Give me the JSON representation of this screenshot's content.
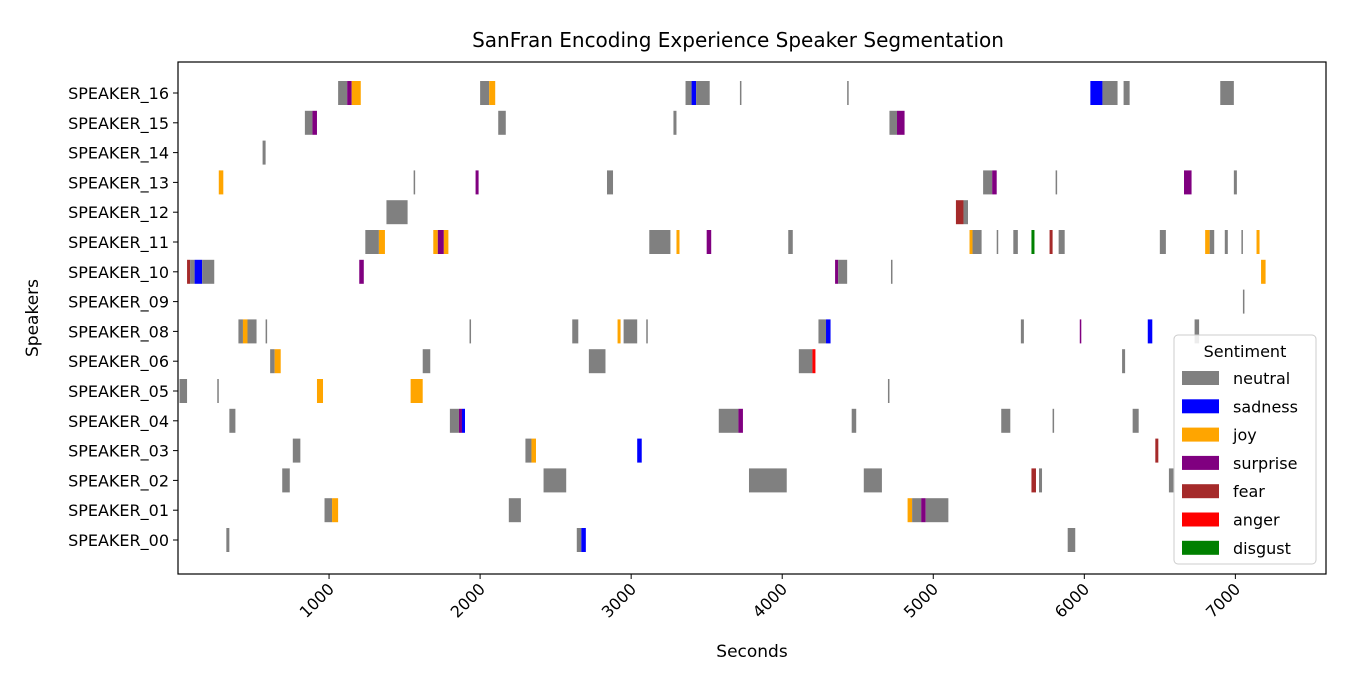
{
  "chart_data": {
    "type": "segmentation",
    "title": "SanFran Encoding Experience Speaker Segmentation",
    "xlabel": "Seconds",
    "ylabel": "Speakers",
    "xlim": [
      0,
      7600
    ],
    "xticks": [
      1000,
      2000,
      3000,
      4000,
      5000,
      6000,
      7000
    ],
    "speakers": [
      "SPEAKER_16",
      "SPEAKER_15",
      "SPEAKER_14",
      "SPEAKER_13",
      "SPEAKER_12",
      "SPEAKER_11",
      "SPEAKER_10",
      "SPEAKER_09",
      "SPEAKER_08",
      "SPEAKER_06",
      "SPEAKER_05",
      "SPEAKER_04",
      "SPEAKER_03",
      "SPEAKER_02",
      "SPEAKER_01",
      "SPEAKER_00"
    ],
    "legend": {
      "title": "Sentiment",
      "placement": "lower-right",
      "entries": [
        {
          "label": "neutral",
          "color": "#808080"
        },
        {
          "label": "sadness",
          "color": "#0000ff"
        },
        {
          "label": "joy",
          "color": "#ffa500"
        },
        {
          "label": "surprise",
          "color": "#800080"
        },
        {
          "label": "fear",
          "color": "#a52a2a"
        },
        {
          "label": "anger",
          "color": "#ff0000"
        },
        {
          "label": "disgust",
          "color": "#008000"
        }
      ]
    },
    "segments": [
      {
        "speaker": "SPEAKER_16",
        "start": 1060,
        "end": 1120,
        "sentiment": "neutral"
      },
      {
        "speaker": "SPEAKER_16",
        "start": 1120,
        "end": 1150,
        "sentiment": "surprise"
      },
      {
        "speaker": "SPEAKER_16",
        "start": 1150,
        "end": 1210,
        "sentiment": "joy"
      },
      {
        "speaker": "SPEAKER_16",
        "start": 2000,
        "end": 2060,
        "sentiment": "neutral"
      },
      {
        "speaker": "SPEAKER_16",
        "start": 2060,
        "end": 2100,
        "sentiment": "joy"
      },
      {
        "speaker": "SPEAKER_16",
        "start": 3360,
        "end": 3400,
        "sentiment": "neutral"
      },
      {
        "speaker": "SPEAKER_16",
        "start": 3400,
        "end": 3430,
        "sentiment": "sadness"
      },
      {
        "speaker": "SPEAKER_16",
        "start": 3430,
        "end": 3520,
        "sentiment": "neutral"
      },
      {
        "speaker": "SPEAKER_16",
        "start": 3720,
        "end": 3730,
        "sentiment": "neutral"
      },
      {
        "speaker": "SPEAKER_16",
        "start": 4430,
        "end": 4440,
        "sentiment": "neutral"
      },
      {
        "speaker": "SPEAKER_16",
        "start": 6040,
        "end": 6120,
        "sentiment": "sadness"
      },
      {
        "speaker": "SPEAKER_16",
        "start": 6120,
        "end": 6220,
        "sentiment": "neutral"
      },
      {
        "speaker": "SPEAKER_16",
        "start": 6260,
        "end": 6300,
        "sentiment": "neutral"
      },
      {
        "speaker": "SPEAKER_16",
        "start": 6900,
        "end": 6990,
        "sentiment": "neutral"
      },
      {
        "speaker": "SPEAKER_15",
        "start": 840,
        "end": 890,
        "sentiment": "neutral"
      },
      {
        "speaker": "SPEAKER_15",
        "start": 890,
        "end": 920,
        "sentiment": "surprise"
      },
      {
        "speaker": "SPEAKER_15",
        "start": 2120,
        "end": 2170,
        "sentiment": "neutral"
      },
      {
        "speaker": "SPEAKER_15",
        "start": 3280,
        "end": 3300,
        "sentiment": "neutral"
      },
      {
        "speaker": "SPEAKER_15",
        "start": 4710,
        "end": 4760,
        "sentiment": "neutral"
      },
      {
        "speaker": "SPEAKER_15",
        "start": 4760,
        "end": 4810,
        "sentiment": "surprise"
      },
      {
        "speaker": "SPEAKER_14",
        "start": 560,
        "end": 580,
        "sentiment": "neutral"
      },
      {
        "speaker": "SPEAKER_13",
        "start": 270,
        "end": 300,
        "sentiment": "joy"
      },
      {
        "speaker": "SPEAKER_13",
        "start": 1560,
        "end": 1570,
        "sentiment": "neutral"
      },
      {
        "speaker": "SPEAKER_13",
        "start": 1970,
        "end": 1990,
        "sentiment": "surprise"
      },
      {
        "speaker": "SPEAKER_13",
        "start": 2840,
        "end": 2880,
        "sentiment": "neutral"
      },
      {
        "speaker": "SPEAKER_13",
        "start": 5330,
        "end": 5390,
        "sentiment": "neutral"
      },
      {
        "speaker": "SPEAKER_13",
        "start": 5390,
        "end": 5420,
        "sentiment": "surprise"
      },
      {
        "speaker": "SPEAKER_13",
        "start": 5810,
        "end": 5820,
        "sentiment": "neutral"
      },
      {
        "speaker": "SPEAKER_13",
        "start": 6660,
        "end": 6710,
        "sentiment": "surprise"
      },
      {
        "speaker": "SPEAKER_13",
        "start": 6990,
        "end": 7010,
        "sentiment": "neutral"
      },
      {
        "speaker": "SPEAKER_12",
        "start": 1380,
        "end": 1520,
        "sentiment": "neutral"
      },
      {
        "speaker": "SPEAKER_12",
        "start": 5150,
        "end": 5200,
        "sentiment": "fear"
      },
      {
        "speaker": "SPEAKER_12",
        "start": 5200,
        "end": 5230,
        "sentiment": "neutral"
      },
      {
        "speaker": "SPEAKER_11",
        "start": 1240,
        "end": 1330,
        "sentiment": "neutral"
      },
      {
        "speaker": "SPEAKER_11",
        "start": 1330,
        "end": 1370,
        "sentiment": "joy"
      },
      {
        "speaker": "SPEAKER_11",
        "start": 1690,
        "end": 1720,
        "sentiment": "joy"
      },
      {
        "speaker": "SPEAKER_11",
        "start": 1720,
        "end": 1760,
        "sentiment": "surprise"
      },
      {
        "speaker": "SPEAKER_11",
        "start": 1760,
        "end": 1790,
        "sentiment": "joy"
      },
      {
        "speaker": "SPEAKER_11",
        "start": 3120,
        "end": 3260,
        "sentiment": "neutral"
      },
      {
        "speaker": "SPEAKER_11",
        "start": 3300,
        "end": 3320,
        "sentiment": "joy"
      },
      {
        "speaker": "SPEAKER_11",
        "start": 3500,
        "end": 3530,
        "sentiment": "surprise"
      },
      {
        "speaker": "SPEAKER_11",
        "start": 4040,
        "end": 4070,
        "sentiment": "neutral"
      },
      {
        "speaker": "SPEAKER_11",
        "start": 5240,
        "end": 5260,
        "sentiment": "joy"
      },
      {
        "speaker": "SPEAKER_11",
        "start": 5260,
        "end": 5320,
        "sentiment": "neutral"
      },
      {
        "speaker": "SPEAKER_11",
        "start": 5420,
        "end": 5430,
        "sentiment": "neutral"
      },
      {
        "speaker": "SPEAKER_11",
        "start": 5530,
        "end": 5560,
        "sentiment": "neutral"
      },
      {
        "speaker": "SPEAKER_11",
        "start": 5650,
        "end": 5670,
        "sentiment": "disgust"
      },
      {
        "speaker": "SPEAKER_11",
        "start": 5770,
        "end": 5790,
        "sentiment": "fear"
      },
      {
        "speaker": "SPEAKER_11",
        "start": 5830,
        "end": 5870,
        "sentiment": "neutral"
      },
      {
        "speaker": "SPEAKER_11",
        "start": 6500,
        "end": 6540,
        "sentiment": "neutral"
      },
      {
        "speaker": "SPEAKER_11",
        "start": 6800,
        "end": 6830,
        "sentiment": "joy"
      },
      {
        "speaker": "SPEAKER_11",
        "start": 6830,
        "end": 6860,
        "sentiment": "neutral"
      },
      {
        "speaker": "SPEAKER_11",
        "start": 6930,
        "end": 6950,
        "sentiment": "neutral"
      },
      {
        "speaker": "SPEAKER_11",
        "start": 7040,
        "end": 7050,
        "sentiment": "neutral"
      },
      {
        "speaker": "SPEAKER_11",
        "start": 7140,
        "end": 7160,
        "sentiment": "joy"
      },
      {
        "speaker": "SPEAKER_10",
        "start": 60,
        "end": 80,
        "sentiment": "fear"
      },
      {
        "speaker": "SPEAKER_10",
        "start": 80,
        "end": 110,
        "sentiment": "neutral"
      },
      {
        "speaker": "SPEAKER_10",
        "start": 110,
        "end": 160,
        "sentiment": "sadness"
      },
      {
        "speaker": "SPEAKER_10",
        "start": 160,
        "end": 240,
        "sentiment": "neutral"
      },
      {
        "speaker": "SPEAKER_10",
        "start": 1200,
        "end": 1230,
        "sentiment": "surprise"
      },
      {
        "speaker": "SPEAKER_10",
        "start": 4350,
        "end": 4370,
        "sentiment": "surprise"
      },
      {
        "speaker": "SPEAKER_10",
        "start": 4370,
        "end": 4430,
        "sentiment": "neutral"
      },
      {
        "speaker": "SPEAKER_10",
        "start": 4720,
        "end": 4730,
        "sentiment": "neutral"
      },
      {
        "speaker": "SPEAKER_10",
        "start": 7170,
        "end": 7200,
        "sentiment": "joy"
      },
      {
        "speaker": "SPEAKER_09",
        "start": 7050,
        "end": 7060,
        "sentiment": "neutral"
      },
      {
        "speaker": "SPEAKER_08",
        "start": 400,
        "end": 430,
        "sentiment": "neutral"
      },
      {
        "speaker": "SPEAKER_08",
        "start": 430,
        "end": 460,
        "sentiment": "joy"
      },
      {
        "speaker": "SPEAKER_08",
        "start": 460,
        "end": 520,
        "sentiment": "neutral"
      },
      {
        "speaker": "SPEAKER_08",
        "start": 580,
        "end": 590,
        "sentiment": "neutral"
      },
      {
        "speaker": "SPEAKER_08",
        "start": 1930,
        "end": 1940,
        "sentiment": "neutral"
      },
      {
        "speaker": "SPEAKER_08",
        "start": 2610,
        "end": 2650,
        "sentiment": "neutral"
      },
      {
        "speaker": "SPEAKER_08",
        "start": 2910,
        "end": 2930,
        "sentiment": "joy"
      },
      {
        "speaker": "SPEAKER_08",
        "start": 2950,
        "end": 3040,
        "sentiment": "neutral"
      },
      {
        "speaker": "SPEAKER_08",
        "start": 3100,
        "end": 3110,
        "sentiment": "neutral"
      },
      {
        "speaker": "SPEAKER_08",
        "start": 4240,
        "end": 4290,
        "sentiment": "neutral"
      },
      {
        "speaker": "SPEAKER_08",
        "start": 4290,
        "end": 4320,
        "sentiment": "sadness"
      },
      {
        "speaker": "SPEAKER_08",
        "start": 5580,
        "end": 5600,
        "sentiment": "neutral"
      },
      {
        "speaker": "SPEAKER_08",
        "start": 5970,
        "end": 5980,
        "sentiment": "surprise"
      },
      {
        "speaker": "SPEAKER_08",
        "start": 6420,
        "end": 6450,
        "sentiment": "sadness"
      },
      {
        "speaker": "SPEAKER_08",
        "start": 6730,
        "end": 6760,
        "sentiment": "neutral"
      },
      {
        "speaker": "SPEAKER_06",
        "start": 610,
        "end": 640,
        "sentiment": "neutral"
      },
      {
        "speaker": "SPEAKER_06",
        "start": 640,
        "end": 680,
        "sentiment": "joy"
      },
      {
        "speaker": "SPEAKER_06",
        "start": 1620,
        "end": 1670,
        "sentiment": "neutral"
      },
      {
        "speaker": "SPEAKER_06",
        "start": 2720,
        "end": 2830,
        "sentiment": "neutral"
      },
      {
        "speaker": "SPEAKER_06",
        "start": 4110,
        "end": 4200,
        "sentiment": "neutral"
      },
      {
        "speaker": "SPEAKER_06",
        "start": 4200,
        "end": 4220,
        "sentiment": "anger"
      },
      {
        "speaker": "SPEAKER_06",
        "start": 6250,
        "end": 6270,
        "sentiment": "neutral"
      },
      {
        "speaker": "SPEAKER_05",
        "start": 10,
        "end": 60,
        "sentiment": "neutral"
      },
      {
        "speaker": "SPEAKER_05",
        "start": 260,
        "end": 270,
        "sentiment": "neutral"
      },
      {
        "speaker": "SPEAKER_05",
        "start": 920,
        "end": 960,
        "sentiment": "joy"
      },
      {
        "speaker": "SPEAKER_05",
        "start": 1540,
        "end": 1620,
        "sentiment": "joy"
      },
      {
        "speaker": "SPEAKER_05",
        "start": 4700,
        "end": 4710,
        "sentiment": "neutral"
      },
      {
        "speaker": "SPEAKER_04",
        "start": 340,
        "end": 380,
        "sentiment": "neutral"
      },
      {
        "speaker": "SPEAKER_04",
        "start": 1800,
        "end": 1860,
        "sentiment": "neutral"
      },
      {
        "speaker": "SPEAKER_04",
        "start": 1860,
        "end": 1880,
        "sentiment": "surprise"
      },
      {
        "speaker": "SPEAKER_04",
        "start": 1880,
        "end": 1900,
        "sentiment": "sadness"
      },
      {
        "speaker": "SPEAKER_04",
        "start": 3580,
        "end": 3710,
        "sentiment": "neutral"
      },
      {
        "speaker": "SPEAKER_04",
        "start": 3710,
        "end": 3740,
        "sentiment": "surprise"
      },
      {
        "speaker": "SPEAKER_04",
        "start": 4460,
        "end": 4490,
        "sentiment": "neutral"
      },
      {
        "speaker": "SPEAKER_04",
        "start": 5450,
        "end": 5510,
        "sentiment": "neutral"
      },
      {
        "speaker": "SPEAKER_04",
        "start": 5790,
        "end": 5800,
        "sentiment": "neutral"
      },
      {
        "speaker": "SPEAKER_04",
        "start": 6320,
        "end": 6360,
        "sentiment": "neutral"
      },
      {
        "speaker": "SPEAKER_03",
        "start": 760,
        "end": 810,
        "sentiment": "neutral"
      },
      {
        "speaker": "SPEAKER_03",
        "start": 2300,
        "end": 2340,
        "sentiment": "neutral"
      },
      {
        "speaker": "SPEAKER_03",
        "start": 2340,
        "end": 2370,
        "sentiment": "joy"
      },
      {
        "speaker": "SPEAKER_03",
        "start": 3040,
        "end": 3070,
        "sentiment": "sadness"
      },
      {
        "speaker": "SPEAKER_03",
        "start": 6470,
        "end": 6490,
        "sentiment": "fear"
      },
      {
        "speaker": "SPEAKER_02",
        "start": 690,
        "end": 740,
        "sentiment": "neutral"
      },
      {
        "speaker": "SPEAKER_02",
        "start": 2420,
        "end": 2570,
        "sentiment": "neutral"
      },
      {
        "speaker": "SPEAKER_02",
        "start": 3780,
        "end": 4030,
        "sentiment": "neutral"
      },
      {
        "speaker": "SPEAKER_02",
        "start": 4540,
        "end": 4660,
        "sentiment": "neutral"
      },
      {
        "speaker": "SPEAKER_02",
        "start": 5650,
        "end": 5680,
        "sentiment": "fear"
      },
      {
        "speaker": "SPEAKER_02",
        "start": 5700,
        "end": 5720,
        "sentiment": "neutral"
      },
      {
        "speaker": "SPEAKER_02",
        "start": 6560,
        "end": 6590,
        "sentiment": "neutral"
      },
      {
        "speaker": "SPEAKER_01",
        "start": 970,
        "end": 1020,
        "sentiment": "neutral"
      },
      {
        "speaker": "SPEAKER_01",
        "start": 1020,
        "end": 1060,
        "sentiment": "joy"
      },
      {
        "speaker": "SPEAKER_01",
        "start": 2190,
        "end": 2270,
        "sentiment": "neutral"
      },
      {
        "speaker": "SPEAKER_01",
        "start": 4830,
        "end": 4860,
        "sentiment": "joy"
      },
      {
        "speaker": "SPEAKER_01",
        "start": 4860,
        "end": 4920,
        "sentiment": "neutral"
      },
      {
        "speaker": "SPEAKER_01",
        "start": 4920,
        "end": 4950,
        "sentiment": "surprise"
      },
      {
        "speaker": "SPEAKER_01",
        "start": 4950,
        "end": 5100,
        "sentiment": "neutral"
      },
      {
        "speaker": "SPEAKER_00",
        "start": 320,
        "end": 340,
        "sentiment": "neutral"
      },
      {
        "speaker": "SPEAKER_00",
        "start": 2640,
        "end": 2670,
        "sentiment": "neutral"
      },
      {
        "speaker": "SPEAKER_00",
        "start": 2670,
        "end": 2700,
        "sentiment": "sadness"
      },
      {
        "speaker": "SPEAKER_00",
        "start": 5890,
        "end": 5940,
        "sentiment": "neutral"
      }
    ]
  }
}
